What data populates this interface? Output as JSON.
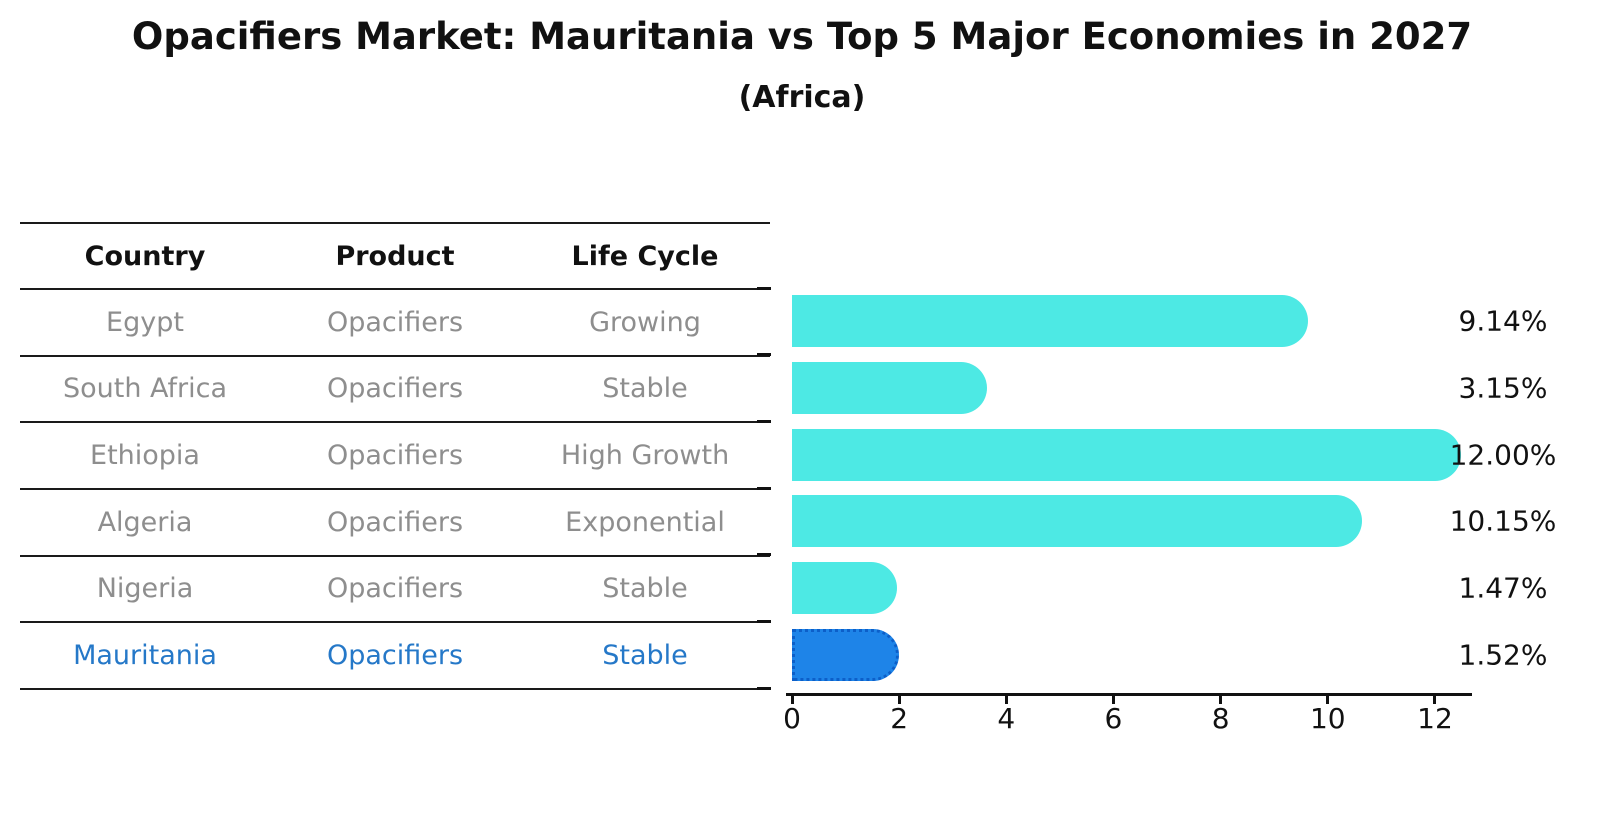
{
  "title": "Opacifiers Market: Mauritania vs Top 5 Major Economies in 2027",
  "subtitle": "(Africa)",
  "table": {
    "columns": [
      "Country",
      "Product",
      "Life Cycle"
    ],
    "rows": [
      {
        "country": "Egypt",
        "product": "Opacifiers",
        "life_cycle": "Growing",
        "highlight": false
      },
      {
        "country": "South Africa",
        "product": "Opacifiers",
        "life_cycle": "Stable",
        "highlight": false
      },
      {
        "country": "Ethiopia",
        "product": "Opacifiers",
        "life_cycle": "High Growth",
        "highlight": false
      },
      {
        "country": "Algeria",
        "product": "Opacifiers",
        "life_cycle": "Exponential",
        "highlight": false
      },
      {
        "country": "Nigeria",
        "product": "Opacifiers",
        "life_cycle": "Stable",
        "highlight": false
      },
      {
        "country": "Mauritania",
        "product": "Opacifiers",
        "life_cycle": "Stable",
        "highlight": true
      }
    ]
  },
  "chart_data": {
    "type": "bar",
    "orientation": "horizontal",
    "title": "Opacifiers Market: Mauritania vs Top 5 Major Economies in 2027",
    "subtitle": "(Africa)",
    "categories": [
      "Egypt",
      "South Africa",
      "Ethiopia",
      "Algeria",
      "Nigeria",
      "Mauritania"
    ],
    "values": [
      9.14,
      3.15,
      12.0,
      10.15,
      1.47,
      1.52
    ],
    "value_labels": [
      "9.14%",
      "3.15%",
      "12.00%",
      "10.15%",
      "1.47%",
      "1.52%"
    ],
    "highlight_category": "Mauritania",
    "xlabel": "",
    "ylabel": "",
    "xlim": [
      0,
      12.5
    ],
    "x_ticks": [
      0,
      2,
      4,
      6,
      8,
      10,
      12
    ],
    "grid": false,
    "legend": false,
    "bar_color": "#4DE9E4",
    "highlight_color": "#1E84E8"
  },
  "colors": {
    "bar": "#4DE9E4",
    "highlight_bar": "#1E84E8",
    "highlight_border": "#0C5FC9",
    "highlight_text": "#2578C8",
    "muted_text": "#8E8E8E",
    "line": "#1A1A1A"
  }
}
